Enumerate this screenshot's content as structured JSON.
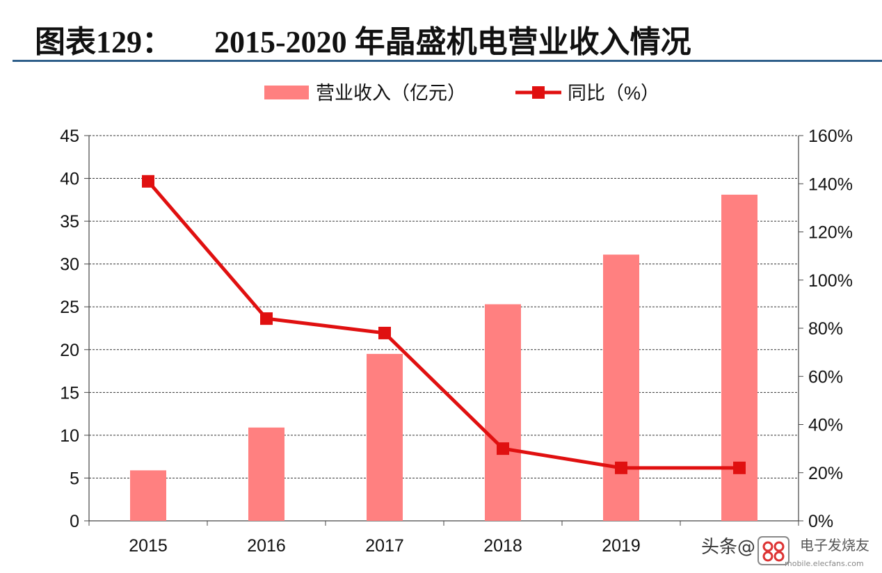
{
  "title": {
    "label": "图表129：",
    "text": "2015-2020 年晶盛机电营业收入情况"
  },
  "colors": {
    "bar": "#ff8080",
    "line": "#e01010",
    "rule": "#2f5f8a",
    "grid": "#333333"
  },
  "chart_data": {
    "type": "bar",
    "categories": [
      "2015",
      "2016",
      "2017",
      "2018",
      "2019",
      ""
    ],
    "series": [
      {
        "name": "营业收入（亿元）",
        "type": "bar",
        "axis": "left",
        "values": [
          5.9,
          10.9,
          19.5,
          25.3,
          31.1,
          38.1
        ]
      },
      {
        "name": "同比（%）",
        "type": "line",
        "axis": "right",
        "values": [
          141,
          84,
          78,
          30,
          22,
          22
        ]
      }
    ],
    "y_left": {
      "ylim": [
        0,
        45
      ],
      "ticks": [
        "0",
        "5",
        "10",
        "15",
        "20",
        "25",
        "30",
        "35",
        "40",
        "45"
      ]
    },
    "y_right": {
      "ylim": [
        0,
        160
      ],
      "ticks": [
        "0%",
        "20%",
        "40%",
        "60%",
        "80%",
        "100%",
        "120%",
        "140%",
        "160%"
      ]
    },
    "legend_position": "top-center",
    "grid": true
  },
  "watermark": {
    "text": "头条@",
    "site": "电子发烧友",
    "url": "mobile.elecfans.com"
  }
}
